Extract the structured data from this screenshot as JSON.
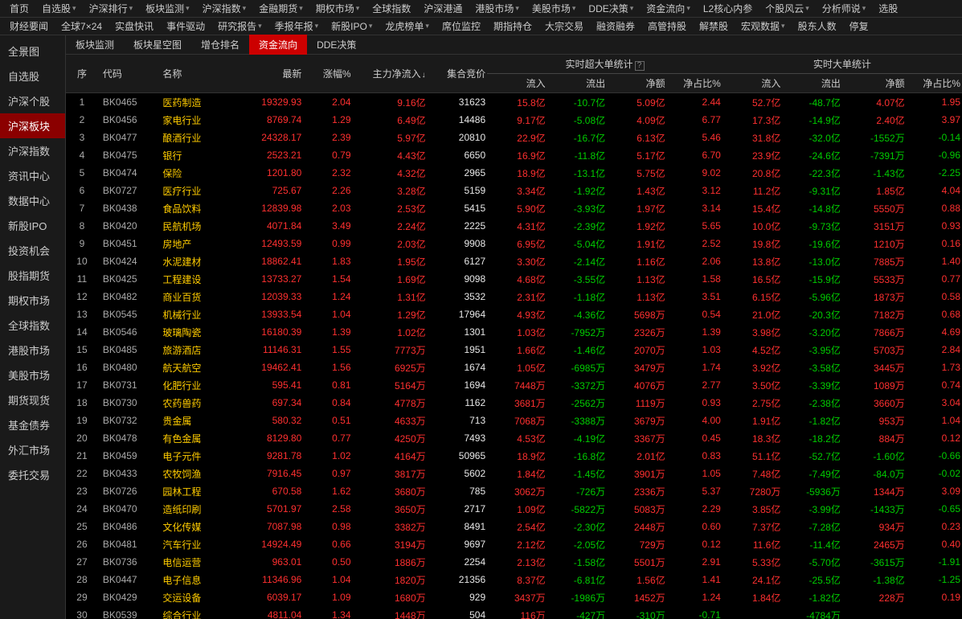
{
  "top_nav_row1": [
    "首页",
    "自选股",
    "沪深排行",
    "板块监测",
    "沪深指数",
    "金融期货",
    "期权市场",
    "全球指数",
    "沪深港通",
    "港股市场",
    "美股市场",
    "DDE决策",
    "资金流向",
    "L2核心内参",
    "个股风云",
    "分析师说",
    "选股"
  ],
  "top_nav_row1_dropdown": [
    false,
    true,
    true,
    true,
    true,
    true,
    true,
    false,
    false,
    true,
    true,
    true,
    true,
    false,
    true,
    true,
    false
  ],
  "top_nav_row2": [
    "财经要闻",
    "全球7×24",
    "实盘快讯",
    "事件驱动",
    "研究报告",
    "季报年报",
    "新股IPO",
    "龙虎榜单",
    "席位监控",
    "期指持仓",
    "大宗交易",
    "融资融券",
    "高管持股",
    "解禁股",
    "宏观数据",
    "股东人数",
    "停复"
  ],
  "top_nav_row2_dropdown": [
    false,
    false,
    false,
    false,
    true,
    true,
    true,
    true,
    false,
    false,
    false,
    false,
    false,
    false,
    true,
    false,
    false
  ],
  "sidebar": [
    "全景图",
    "自选股",
    "沪深个股",
    "沪深板块",
    "沪深指数",
    "资讯中心",
    "数据中心",
    "新股IPO",
    "投资机会",
    "股指期货",
    "期权市场",
    "全球指数",
    "港股市场",
    "美股市场",
    "期货现货",
    "基金债券",
    "外汇市场",
    "委托交易"
  ],
  "sidebar_active_index": 3,
  "tabs": [
    "板块监测",
    "板块星空图",
    "增仓排名",
    "资金流向",
    "DDE决策"
  ],
  "tab_active_index": 3,
  "headers": {
    "seq": "序",
    "code": "代码",
    "name": "名称",
    "latest": "最新",
    "pct": "涨幅%",
    "mainflow": "主力净流入",
    "auction": "集合竞价",
    "group1": "实时超大单统计",
    "group2": "实时大单统计",
    "inflow": "流入",
    "outflow": "流出",
    "net": "净额",
    "ratio": "净占比%"
  },
  "rows": [
    {
      "seq": 1,
      "code": "BK0465",
      "name": "医药制造",
      "latest": "19329.93",
      "pct": "2.04",
      "mainflow": "9.16亿",
      "auction": "31623",
      "in1": "15.8亿",
      "out1": "-10.7亿",
      "net1": "5.09亿",
      "net1_color": "red",
      "ratio1": "2.44",
      "in2": "52.7亿",
      "out2": "-48.7亿",
      "net2": "4.07亿",
      "net2_color": "red",
      "ratio2": "1.95"
    },
    {
      "seq": 2,
      "code": "BK0456",
      "name": "家电行业",
      "latest": "8769.74",
      "pct": "1.29",
      "mainflow": "6.49亿",
      "auction": "14486",
      "in1": "9.17亿",
      "out1": "-5.08亿",
      "net1": "4.09亿",
      "net1_color": "red",
      "ratio1": "6.77",
      "in2": "17.3亿",
      "out2": "-14.9亿",
      "net2": "2.40亿",
      "net2_color": "red",
      "ratio2": "3.97"
    },
    {
      "seq": 3,
      "code": "BK0477",
      "name": "酿酒行业",
      "latest": "24328.17",
      "pct": "2.39",
      "mainflow": "5.97亿",
      "auction": "20810",
      "in1": "22.9亿",
      "out1": "-16.7亿",
      "net1": "6.13亿",
      "net1_color": "red",
      "ratio1": "5.46",
      "in2": "31.8亿",
      "out2": "-32.0亿",
      "net2": "-1552万",
      "net2_color": "green",
      "ratio2": "-0.14",
      "ratio2_color": "green"
    },
    {
      "seq": 4,
      "code": "BK0475",
      "name": "银行",
      "latest": "2523.21",
      "pct": "0.79",
      "mainflow": "4.43亿",
      "auction": "6650",
      "in1": "16.9亿",
      "out1": "-11.8亿",
      "net1": "5.17亿",
      "net1_color": "red",
      "ratio1": "6.70",
      "in2": "23.9亿",
      "out2": "-24.6亿",
      "net2": "-7391万",
      "net2_color": "green",
      "ratio2": "-0.96",
      "ratio2_color": "green"
    },
    {
      "seq": 5,
      "code": "BK0474",
      "name": "保险",
      "latest": "1201.80",
      "pct": "2.32",
      "mainflow": "4.32亿",
      "auction": "2965",
      "in1": "18.9亿",
      "out1": "-13.1亿",
      "net1": "5.75亿",
      "net1_color": "red",
      "ratio1": "9.02",
      "in2": "20.8亿",
      "out2": "-22.3亿",
      "net2": "-1.43亿",
      "net2_color": "green",
      "ratio2": "-2.25",
      "ratio2_color": "green"
    },
    {
      "seq": 6,
      "code": "BK0727",
      "name": "医疗行业",
      "latest": "725.67",
      "pct": "2.26",
      "mainflow": "3.28亿",
      "auction": "5159",
      "in1": "3.34亿",
      "out1": "-1.92亿",
      "net1": "1.43亿",
      "net1_color": "red",
      "ratio1": "3.12",
      "in2": "11.2亿",
      "out2": "-9.31亿",
      "net2": "1.85亿",
      "net2_color": "red",
      "ratio2": "4.04"
    },
    {
      "seq": 7,
      "code": "BK0438",
      "name": "食品饮料",
      "latest": "12839.98",
      "pct": "2.03",
      "mainflow": "2.53亿",
      "auction": "5415",
      "in1": "5.90亿",
      "out1": "-3.93亿",
      "net1": "1.97亿",
      "net1_color": "red",
      "ratio1": "3.14",
      "in2": "15.4亿",
      "out2": "-14.8亿",
      "net2": "5550万",
      "net2_color": "red",
      "ratio2": "0.88"
    },
    {
      "seq": 8,
      "code": "BK0420",
      "name": "民航机场",
      "latest": "4071.84",
      "pct": "3.49",
      "mainflow": "2.24亿",
      "auction": "2225",
      "in1": "4.31亿",
      "out1": "-2.39亿",
      "net1": "1.92亿",
      "net1_color": "red",
      "ratio1": "5.65",
      "in2": "10.0亿",
      "out2": "-9.73亿",
      "net2": "3151万",
      "net2_color": "red",
      "ratio2": "0.93"
    },
    {
      "seq": 9,
      "code": "BK0451",
      "name": "房地产",
      "latest": "12493.59",
      "pct": "0.99",
      "mainflow": "2.03亿",
      "auction": "9908",
      "in1": "6.95亿",
      "out1": "-5.04亿",
      "net1": "1.91亿",
      "net1_color": "red",
      "ratio1": "2.52",
      "in2": "19.8亿",
      "out2": "-19.6亿",
      "net2": "1210万",
      "net2_color": "red",
      "ratio2": "0.16"
    },
    {
      "seq": 10,
      "code": "BK0424",
      "name": "水泥建材",
      "latest": "18862.41",
      "pct": "1.83",
      "mainflow": "1.95亿",
      "auction": "6127",
      "in1": "3.30亿",
      "out1": "-2.14亿",
      "net1": "1.16亿",
      "net1_color": "red",
      "ratio1": "2.06",
      "in2": "13.8亿",
      "out2": "-13.0亿",
      "net2": "7885万",
      "net2_color": "red",
      "ratio2": "1.40"
    },
    {
      "seq": 11,
      "code": "BK0425",
      "name": "工程建设",
      "latest": "13733.27",
      "pct": "1.54",
      "mainflow": "1.69亿",
      "auction": "9098",
      "in1": "4.68亿",
      "out1": "-3.55亿",
      "net1": "1.13亿",
      "net1_color": "red",
      "ratio1": "1.58",
      "in2": "16.5亿",
      "out2": "-15.9亿",
      "net2": "5533万",
      "net2_color": "red",
      "ratio2": "0.77"
    },
    {
      "seq": 12,
      "code": "BK0482",
      "name": "商业百货",
      "latest": "12039.33",
      "pct": "1.24",
      "mainflow": "1.31亿",
      "auction": "3532",
      "in1": "2.31亿",
      "out1": "-1.18亿",
      "net1": "1.13亿",
      "net1_color": "red",
      "ratio1": "3.51",
      "in2": "6.15亿",
      "out2": "-5.96亿",
      "net2": "1873万",
      "net2_color": "red",
      "ratio2": "0.58"
    },
    {
      "seq": 13,
      "code": "BK0545",
      "name": "机械行业",
      "latest": "13933.54",
      "pct": "1.04",
      "mainflow": "1.29亿",
      "auction": "17964",
      "in1": "4.93亿",
      "out1": "-4.36亿",
      "net1": "5698万",
      "net1_color": "red",
      "ratio1": "0.54",
      "in2": "21.0亿",
      "out2": "-20.3亿",
      "net2": "7182万",
      "net2_color": "red",
      "ratio2": "0.68"
    },
    {
      "seq": 14,
      "code": "BK0546",
      "name": "玻璃陶瓷",
      "latest": "16180.39",
      "pct": "1.39",
      "mainflow": "1.02亿",
      "auction": "1301",
      "in1": "1.03亿",
      "out1": "-7952万",
      "net1": "2326万",
      "net1_color": "red",
      "ratio1": "1.39",
      "in2": "3.98亿",
      "out2": "-3.20亿",
      "net2": "7866万",
      "net2_color": "red",
      "ratio2": "4.69"
    },
    {
      "seq": 15,
      "code": "BK0485",
      "name": "旅游酒店",
      "latest": "11146.31",
      "pct": "1.55",
      "mainflow": "7773万",
      "auction": "1951",
      "in1": "1.66亿",
      "out1": "-1.46亿",
      "net1": "2070万",
      "net1_color": "red",
      "ratio1": "1.03",
      "in2": "4.52亿",
      "out2": "-3.95亿",
      "net2": "5703万",
      "net2_color": "red",
      "ratio2": "2.84"
    },
    {
      "seq": 16,
      "code": "BK0480",
      "name": "航天航空",
      "latest": "19462.41",
      "pct": "1.56",
      "mainflow": "6925万",
      "auction": "1674",
      "in1": "1.05亿",
      "out1": "-6985万",
      "net1": "3479万",
      "net1_color": "red",
      "ratio1": "1.74",
      "in2": "3.92亿",
      "out2": "-3.58亿",
      "net2": "3445万",
      "net2_color": "red",
      "ratio2": "1.73"
    },
    {
      "seq": 17,
      "code": "BK0731",
      "name": "化肥行业",
      "latest": "595.41",
      "pct": "0.81",
      "mainflow": "5164万",
      "auction": "1694",
      "in1": "7448万",
      "out1": "-3372万",
      "net1": "4076万",
      "net1_color": "red",
      "ratio1": "2.77",
      "in2": "3.50亿",
      "out2": "-3.39亿",
      "net2": "1089万",
      "net2_color": "red",
      "ratio2": "0.74"
    },
    {
      "seq": 18,
      "code": "BK0730",
      "name": "农药兽药",
      "latest": "697.34",
      "pct": "0.84",
      "mainflow": "4778万",
      "auction": "1162",
      "in1": "3681万",
      "out1": "-2562万",
      "net1": "1119万",
      "net1_color": "red",
      "ratio1": "0.93",
      "in2": "2.75亿",
      "out2": "-2.38亿",
      "net2": "3660万",
      "net2_color": "red",
      "ratio2": "3.04"
    },
    {
      "seq": 19,
      "code": "BK0732",
      "name": "贵金属",
      "latest": "580.32",
      "pct": "0.51",
      "mainflow": "4633万",
      "auction": "713",
      "in1": "7068万",
      "out1": "-3388万",
      "net1": "3679万",
      "net1_color": "red",
      "ratio1": "4.00",
      "in2": "1.91亿",
      "out2": "-1.82亿",
      "net2": "953万",
      "net2_color": "red",
      "ratio2": "1.04"
    },
    {
      "seq": 20,
      "code": "BK0478",
      "name": "有色金属",
      "latest": "8129.80",
      "pct": "0.77",
      "mainflow": "4250万",
      "auction": "7493",
      "in1": "4.53亿",
      "out1": "-4.19亿",
      "net1": "3367万",
      "net1_color": "red",
      "ratio1": "0.45",
      "in2": "18.3亿",
      "out2": "-18.2亿",
      "net2": "884万",
      "net2_color": "red",
      "ratio2": "0.12"
    },
    {
      "seq": 21,
      "code": "BK0459",
      "name": "电子元件",
      "latest": "9281.78",
      "pct": "1.02",
      "mainflow": "4164万",
      "auction": "50965",
      "in1": "18.9亿",
      "out1": "-16.8亿",
      "net1": "2.01亿",
      "net1_color": "red",
      "ratio1": "0.83",
      "in2": "51.1亿",
      "out2": "-52.7亿",
      "net2": "-1.60亿",
      "net2_color": "green",
      "ratio2": "-0.66",
      "ratio2_color": "green"
    },
    {
      "seq": 22,
      "code": "BK0433",
      "name": "农牧饲渔",
      "latest": "7916.45",
      "pct": "0.97",
      "mainflow": "3817万",
      "auction": "5602",
      "in1": "1.84亿",
      "out1": "-1.45亿",
      "net1": "3901万",
      "net1_color": "red",
      "ratio1": "1.05",
      "in2": "7.48亿",
      "out2": "-7.49亿",
      "net2": "-84.0万",
      "net2_color": "green",
      "ratio2": "-0.02",
      "ratio2_color": "green"
    },
    {
      "seq": 23,
      "code": "BK0726",
      "name": "园林工程",
      "latest": "670.58",
      "pct": "1.62",
      "mainflow": "3680万",
      "auction": "785",
      "in1": "3062万",
      "out1": "-726万",
      "net1": "2336万",
      "net1_color": "red",
      "ratio1": "5.37",
      "in2": "7280万",
      "out2": "-5936万",
      "net2": "1344万",
      "net2_color": "red",
      "ratio2": "3.09"
    },
    {
      "seq": 24,
      "code": "BK0470",
      "name": "造纸印刷",
      "latest": "5701.97",
      "pct": "2.58",
      "mainflow": "3650万",
      "auction": "2717",
      "in1": "1.09亿",
      "out1": "-5822万",
      "net1": "5083万",
      "net1_color": "red",
      "ratio1": "2.29",
      "in2": "3.85亿",
      "out2": "-3.99亿",
      "net2": "-1433万",
      "net2_color": "green",
      "ratio2": "-0.65",
      "ratio2_color": "green"
    },
    {
      "seq": 25,
      "code": "BK0486",
      "name": "文化传媒",
      "latest": "7087.98",
      "pct": "0.98",
      "mainflow": "3382万",
      "auction": "8491",
      "in1": "2.54亿",
      "out1": "-2.30亿",
      "net1": "2448万",
      "net1_color": "red",
      "ratio1": "0.60",
      "in2": "7.37亿",
      "out2": "-7.28亿",
      "net2": "934万",
      "net2_color": "red",
      "ratio2": "0.23"
    },
    {
      "seq": 26,
      "code": "BK0481",
      "name": "汽车行业",
      "latest": "14924.49",
      "pct": "0.66",
      "mainflow": "3194万",
      "auction": "9697",
      "in1": "2.12亿",
      "out1": "-2.05亿",
      "net1": "729万",
      "net1_color": "red",
      "ratio1": "0.12",
      "in2": "11.6亿",
      "out2": "-11.4亿",
      "net2": "2465万",
      "net2_color": "red",
      "ratio2": "0.40"
    },
    {
      "seq": 27,
      "code": "BK0736",
      "name": "电信运营",
      "latest": "963.01",
      "pct": "0.50",
      "mainflow": "1886万",
      "auction": "2254",
      "in1": "2.13亿",
      "out1": "-1.58亿",
      "net1": "5501万",
      "net1_color": "red",
      "ratio1": "2.91",
      "in2": "5.33亿",
      "out2": "-5.70亿",
      "net2": "-3615万",
      "net2_color": "green",
      "ratio2": "-1.91",
      "ratio2_color": "green"
    },
    {
      "seq": 28,
      "code": "BK0447",
      "name": "电子信息",
      "latest": "11346.96",
      "pct": "1.04",
      "mainflow": "1820万",
      "auction": "21356",
      "in1": "8.37亿",
      "out1": "-6.81亿",
      "net1": "1.56亿",
      "net1_color": "red",
      "ratio1": "1.41",
      "in2": "24.1亿",
      "out2": "-25.5亿",
      "net2": "-1.38亿",
      "net2_color": "green",
      "ratio2": "-1.25",
      "ratio2_color": "green"
    },
    {
      "seq": 29,
      "code": "BK0429",
      "name": "交运设备",
      "latest": "6039.17",
      "pct": "1.09",
      "mainflow": "1680万",
      "auction": "929",
      "in1": "3437万",
      "out1": "-1986万",
      "net1": "1452万",
      "net1_color": "red",
      "ratio1": "1.24",
      "in2": "1.84亿",
      "out2": "-1.82亿",
      "net2": "228万",
      "net2_color": "red",
      "ratio2": "0.19"
    },
    {
      "seq": 30,
      "code": "BK0539",
      "name": "综合行业",
      "latest": "4811.04",
      "pct": "1.34",
      "mainflow": "1448万",
      "auction": "504",
      "in1": "116万",
      "out1": "-427万",
      "net1": "-310万",
      "net1_color": "green",
      "ratio1": "-0.71",
      "ratio1_color": "green",
      "in2": "",
      "out2": "-4784万",
      "net2": "",
      "net2_color": "red",
      "ratio2": ""
    }
  ]
}
